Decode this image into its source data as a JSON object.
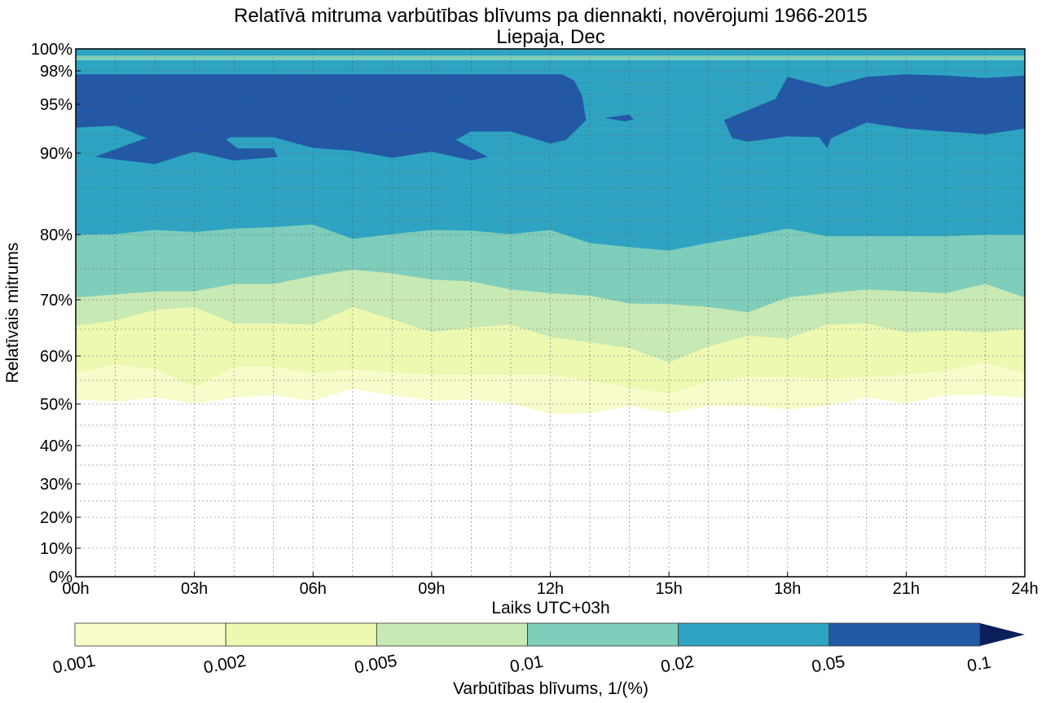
{
  "chart_data": {
    "type": "heatmap",
    "subtype": "filled-contour",
    "title": "Relatīvā mitruma varbūtības blīvums pa diennakti, novērojumi 1966-2015",
    "subtitle": "Liepaja, Dec",
    "xlabel": "Laiks UTC+03h",
    "ylabel": "Relatīvais mitrums",
    "xlim": [
      0,
      24
    ],
    "ylim": [
      0,
      100
    ],
    "y_scale": "nonlinear (stretched toward 100%)",
    "grid": true,
    "x_ticks": [
      "00h",
      "03h",
      "06h",
      "09h",
      "12h",
      "15h",
      "18h",
      "21h",
      "24h"
    ],
    "x_tick_values": [
      0,
      3,
      6,
      9,
      12,
      15,
      18,
      21,
      24
    ],
    "y_ticks": [
      "0%",
      "10%",
      "20%",
      "30%",
      "40%",
      "50%",
      "60%",
      "70%",
      "80%",
      "90%",
      "95%",
      "98%",
      "100%"
    ],
    "y_tick_values": [
      0,
      10,
      20,
      30,
      40,
      50,
      60,
      70,
      80,
      90,
      95,
      98,
      100
    ],
    "colorbar": {
      "label": "Varbūtības blīvums, 1/(%)",
      "position": "bottom",
      "levels": [
        "0.001",
        "0.002",
        "0.005",
        "0.01",
        "0.02",
        "0.05",
        "0.1"
      ],
      "colors": [
        "#f8fccb",
        "#edf8b1",
        "#c7e9b4",
        "#7fcdbb",
        "#2ea4c2",
        "#2358a6"
      ],
      "extend_max_color": "#0b1f5a"
    },
    "hours": [
      0,
      1,
      2,
      3,
      4,
      5,
      6,
      7,
      8,
      9,
      10,
      11,
      12,
      13,
      14,
      15,
      16,
      17,
      18,
      19,
      20,
      21,
      22,
      23,
      24
    ],
    "contour_lower_bounds_pct": [
      {
        "level": "0.001",
        "values": [
          51.0,
          50.5,
          51.4,
          50.2,
          51.4,
          51.9,
          50.7,
          53.3,
          51.9,
          50.7,
          51.0,
          50.2,
          47.7,
          47.9,
          49.6,
          47.9,
          49.6,
          49.6,
          48.8,
          49.6,
          51.4,
          50.2,
          51.9,
          51.9,
          51.4
        ]
      },
      {
        "level": "0.002",
        "values": [
          56.5,
          58.3,
          57.3,
          53.6,
          57.8,
          57.8,
          56.5,
          57.3,
          56.7,
          56.2,
          56.2,
          56.2,
          56.2,
          55.0,
          53.6,
          52.2,
          54.8,
          55.7,
          55.7,
          55.3,
          55.7,
          56.2,
          57.0,
          58.7,
          56.5
        ]
      },
      {
        "level": "0.005",
        "values": [
          65.6,
          66.5,
          68.3,
          68.8,
          66.0,
          66.0,
          65.8,
          68.8,
          66.7,
          64.5,
          65.3,
          65.8,
          63.6,
          62.6,
          61.5,
          58.7,
          61.8,
          63.8,
          63.3,
          65.8,
          66.0,
          64.4,
          64.8,
          64.4,
          65.1
        ]
      },
      {
        "level": "0.01",
        "values": [
          70.4,
          70.9,
          71.4,
          71.4,
          72.6,
          72.6,
          73.9,
          74.9,
          74.3,
          73.3,
          73.0,
          71.7,
          71.1,
          70.7,
          69.4,
          69.3,
          68.8,
          67.9,
          70.4,
          71.1,
          71.7,
          71.4,
          71.1,
          72.6,
          70.4
        ]
      },
      {
        "level": "0.02",
        "values": [
          80.0,
          80.1,
          80.7,
          80.4,
          80.9,
          81.1,
          81.5,
          79.4,
          80.1,
          80.7,
          80.6,
          80.1,
          80.7,
          78.8,
          78.2,
          77.7,
          78.8,
          79.8,
          80.9,
          79.8,
          79.8,
          79.8,
          79.8,
          80.0,
          80.0
        ]
      }
    ],
    "top_band_0_01_pct": [
      99.0,
      99.4
    ],
    "regions_0_05": [
      [
        [
          0,
          97.7
        ],
        [
          12.3,
          97.7
        ],
        [
          12.6,
          97.2
        ],
        [
          12.8,
          95.8
        ],
        [
          12.9,
          93.5
        ],
        [
          12.4,
          91.5
        ],
        [
          12.0,
          91.1
        ],
        [
          11,
          92.4
        ],
        [
          10,
          92.4
        ],
        [
          9.6,
          91.5
        ],
        [
          10.4,
          89.6
        ],
        [
          10,
          89.2
        ],
        [
          9,
          90.2
        ],
        [
          8,
          89.5
        ],
        [
          7,
          90.3
        ],
        [
          6,
          90.6
        ],
        [
          5,
          91.8
        ],
        [
          3.9,
          91.8
        ],
        [
          3.8,
          91.5
        ],
        [
          4.1,
          90.5
        ],
        [
          5,
          90.5
        ],
        [
          5.1,
          89.6
        ],
        [
          4,
          89.2
        ],
        [
          3,
          90.2
        ],
        [
          2,
          88.8
        ],
        [
          0.5,
          89.6
        ],
        [
          1.8,
          91.7
        ],
        [
          1,
          93.0
        ],
        [
          0,
          92.8
        ]
      ],
      [
        [
          13.4,
          93.7
        ],
        [
          14.0,
          94.0
        ],
        [
          14.1,
          93.6
        ],
        [
          13.9,
          93.4
        ]
      ],
      [
        [
          16.4,
          93.5
        ],
        [
          17.7,
          95.5
        ],
        [
          18,
          97.5
        ],
        [
          19,
          96.6
        ],
        [
          20,
          97.5
        ],
        [
          21,
          97.7
        ],
        [
          22,
          97.6
        ],
        [
          23,
          97.4
        ],
        [
          24,
          97.6
        ],
        [
          24,
          92.7
        ],
        [
          23,
          92.1
        ],
        [
          22,
          92.4
        ],
        [
          21,
          92.7
        ],
        [
          20,
          93.3
        ],
        [
          19.1,
          91.7
        ],
        [
          19,
          90.6
        ],
        [
          18.8,
          91.8
        ],
        [
          18,
          91.9
        ],
        [
          17,
          91.3
        ],
        [
          16.6,
          91.7
        ]
      ]
    ]
  }
}
